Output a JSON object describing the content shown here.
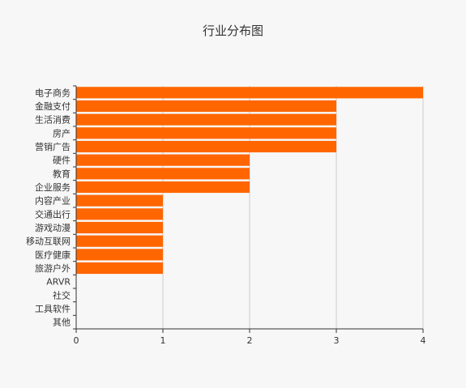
{
  "chart_data": {
    "type": "bar",
    "orientation": "horizontal",
    "title": "行业分布图",
    "xlabel": "",
    "ylabel": "",
    "categories": [
      "电子商务",
      "金融支付",
      "生活消费",
      "房产",
      "营销广告",
      "硬件",
      "教育",
      "企业服务",
      "内容产业",
      "交通出行",
      "游戏动漫",
      "移动互联网",
      "医疗健康",
      "旅游户外",
      "ARVR",
      "社交",
      "工具软件",
      "其他"
    ],
    "values": [
      4,
      3,
      3,
      3,
      3,
      2,
      2,
      2,
      1,
      1,
      1,
      1,
      1,
      1,
      0,
      0,
      0,
      0
    ],
    "xlim": [
      0,
      4
    ],
    "xticks": [
      0,
      1,
      2,
      3,
      4
    ],
    "grid": true,
    "legend": "none",
    "colors": {
      "bar": "#ff6600",
      "grid": "#cccccc",
      "axis": "#333333",
      "background": "#f7f7f7"
    }
  }
}
